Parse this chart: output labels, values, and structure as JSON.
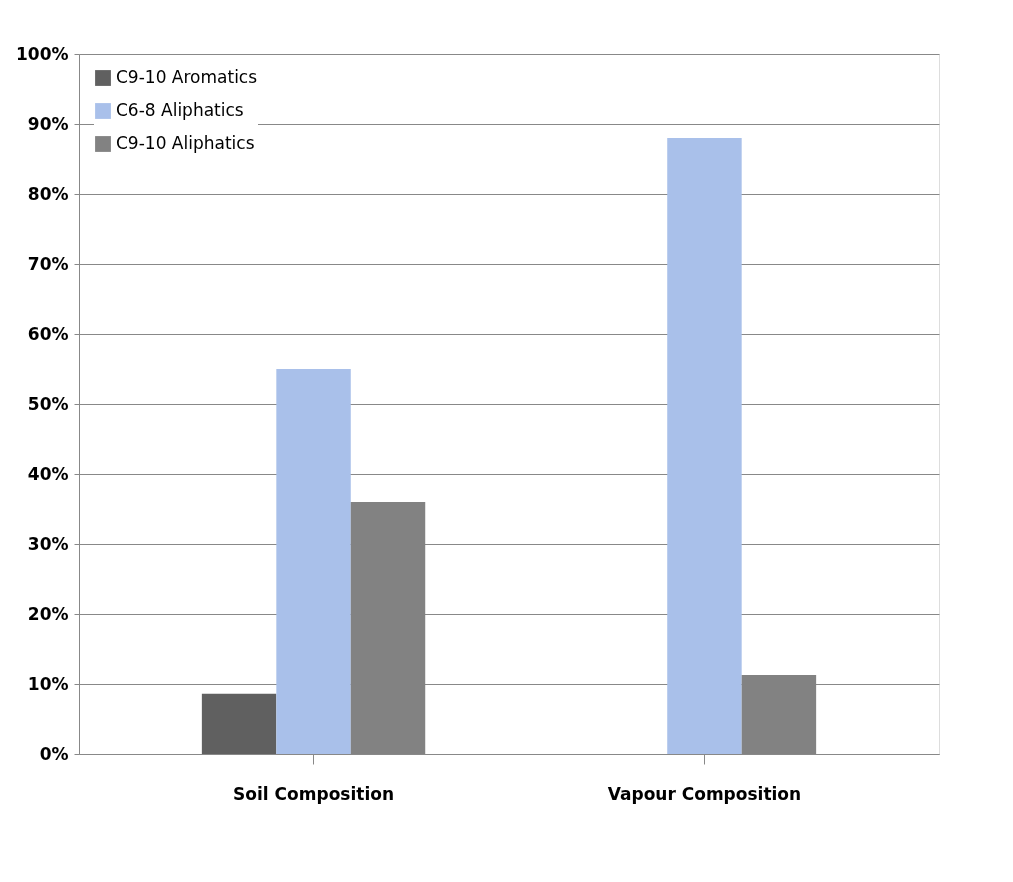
{
  "chart_data": {
    "type": "bar",
    "categories": [
      "Soil Composition",
      "Vapour Composition"
    ],
    "series": [
      {
        "name": "C9-10 Aromatics",
        "color": "#606060",
        "values": [
          8.6,
          0
        ]
      },
      {
        "name": "C6-8 Aliphatics",
        "color": "#a9c0ea",
        "values": [
          55,
          88
        ]
      },
      {
        "name": "C9-10 Aliphatics",
        "color": "#828282",
        "values": [
          36,
          11.3
        ]
      }
    ],
    "ylim": [
      0,
      100
    ],
    "yticks": [
      {
        "value": 0,
        "label": "0%"
      },
      {
        "value": 10,
        "label": "10%"
      },
      {
        "value": 20,
        "label": "20%"
      },
      {
        "value": 30,
        "label": "30%"
      },
      {
        "value": 40,
        "label": "40%"
      },
      {
        "value": 50,
        "label": "50%"
      },
      {
        "value": 60,
        "label": "60%"
      },
      {
        "value": 70,
        "label": "70%"
      },
      {
        "value": 80,
        "label": "80%"
      },
      {
        "value": 90,
        "label": "90%"
      },
      {
        "value": 100,
        "label": "100%"
      }
    ],
    "grid": "y",
    "legend": "top left"
  }
}
